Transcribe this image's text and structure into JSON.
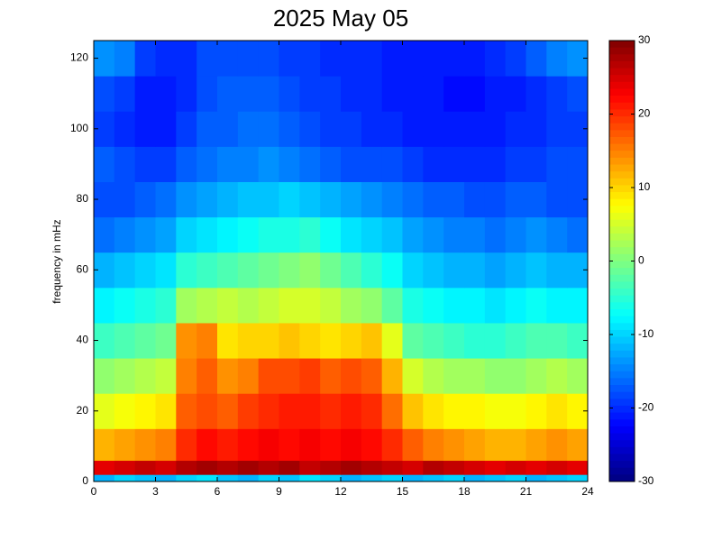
{
  "chart_data": {
    "type": "heatmap",
    "title": "2025 May 05",
    "ylabel": "frequency in mHz",
    "x_edges": [
      0,
      1,
      2,
      3,
      4,
      5,
      6,
      7,
      8,
      9,
      10,
      11,
      12,
      13,
      14,
      15,
      16,
      17,
      18,
      19,
      20,
      21,
      22,
      23,
      24
    ],
    "y_edges": [
      0,
      2,
      6,
      15,
      25,
      35,
      45,
      55,
      65,
      75,
      85,
      95,
      105,
      115,
      125
    ],
    "values": [
      [
        -12,
        -10,
        -11,
        -12,
        -10,
        -9,
        -11,
        -12,
        -10,
        -11,
        -9,
        -10,
        -12,
        -11,
        -10,
        -12,
        -11,
        -10,
        -12,
        -11,
        -10,
        -12,
        -11,
        -10
      ],
      [
        24,
        25,
        26,
        25,
        27,
        28,
        27,
        28,
        27,
        28,
        26,
        27,
        28,
        27,
        26,
        25,
        27,
        26,
        25,
        24,
        25,
        24,
        25,
        24
      ],
      [
        12,
        13,
        14,
        15,
        20,
        22,
        21,
        22,
        23,
        22,
        23,
        22,
        23,
        22,
        20,
        17,
        15,
        14,
        13,
        12,
        12,
        13,
        14,
        13
      ],
      [
        6,
        7,
        8,
        9,
        17,
        18,
        17,
        19,
        20,
        21,
        21,
        20,
        21,
        20,
        16,
        11,
        9,
        8,
        8,
        7,
        7,
        8,
        9,
        8
      ],
      [
        1,
        2,
        3,
        4,
        15,
        17,
        14,
        15,
        18,
        18,
        19,
        17,
        18,
        17,
        12,
        5,
        3,
        2,
        2,
        1,
        1,
        2,
        3,
        2
      ],
      [
        -4,
        -3,
        -2,
        -1,
        14,
        15,
        9,
        10,
        10,
        11,
        10,
        9,
        10,
        11,
        6,
        -2,
        -3,
        -4,
        -5,
        -5,
        -4,
        -3,
        -3,
        -4
      ],
      [
        -8,
        -7,
        -6,
        -5,
        2,
        3,
        4,
        3,
        4,
        5,
        5,
        4,
        2,
        1,
        -2,
        -6,
        -7,
        -8,
        -8,
        -9,
        -8,
        -7,
        -8,
        -8
      ],
      [
        -12,
        -11,
        -10,
        -9,
        -5,
        -4,
        -3,
        -2,
        -1,
        0,
        1,
        -1,
        -3,
        -5,
        -7,
        -10,
        -11,
        -12,
        -12,
        -13,
        -12,
        -11,
        -12,
        -12
      ],
      [
        -16,
        -15,
        -14,
        -13,
        -10,
        -9,
        -8,
        -7,
        -6,
        -6,
        -5,
        -7,
        -9,
        -10,
        -11,
        -13,
        -14,
        -15,
        -15,
        -16,
        -15,
        -14,
        -15,
        -16
      ],
      [
        -18,
        -18,
        -17,
        -16,
        -14,
        -13,
        -12,
        -11,
        -11,
        -10,
        -11,
        -12,
        -13,
        -14,
        -15,
        -16,
        -17,
        -17,
        -18,
        -18,
        -17,
        -17,
        -18,
        -18
      ],
      [
        -17,
        -18,
        -19,
        -19,
        -17,
        -16,
        -15,
        -15,
        -14,
        -15,
        -16,
        -17,
        -18,
        -18,
        -18,
        -19,
        -20,
        -20,
        -20,
        -20,
        -19,
        -19,
        -18,
        -18
      ],
      [
        -19,
        -20,
        -21,
        -21,
        -19,
        -17,
        -17,
        -16,
        -16,
        -17,
        -18,
        -19,
        -19,
        -20,
        -20,
        -21,
        -21,
        -21,
        -21,
        -21,
        -20,
        -20,
        -19,
        -19
      ],
      [
        -18,
        -19,
        -21,
        -21,
        -20,
        -18,
        -17,
        -17,
        -17,
        -18,
        -19,
        -19,
        -20,
        -20,
        -21,
        -21,
        -21,
        -22,
        -22,
        -21,
        -21,
        -20,
        -19,
        -18
      ],
      [
        -14,
        -15,
        -19,
        -20,
        -20,
        -18,
        -18,
        -18,
        -18,
        -19,
        -19,
        -20,
        -20,
        -20,
        -21,
        -21,
        -21,
        -21,
        -21,
        -20,
        -19,
        -17,
        -15,
        -14
      ]
    ],
    "colormap": "jet",
    "xlim": [
      0,
      24
    ],
    "xticks": [
      0,
      3,
      6,
      9,
      12,
      15,
      18,
      21,
      24
    ],
    "ylim": [
      0,
      125
    ],
    "yticks": [
      0,
      20,
      40,
      60,
      80,
      100,
      120
    ],
    "clim": [
      -30,
      30
    ],
    "cticks": [
      -30,
      -20,
      -10,
      0,
      10,
      20,
      30
    ]
  }
}
